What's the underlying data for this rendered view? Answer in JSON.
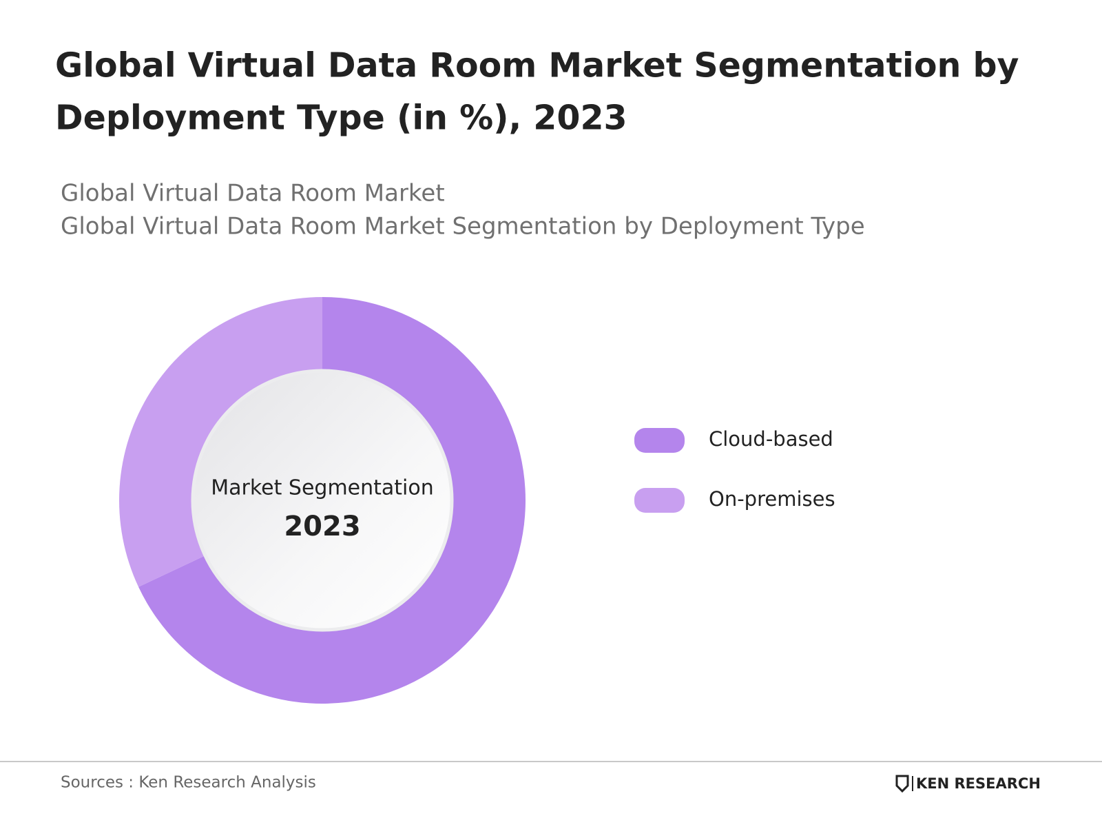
{
  "chart_data": {
    "type": "doughnut",
    "title": [
      "Global Virtual Data Room Market Segmentation by",
      "Deployment Type (in %), 2023"
    ],
    "subtitles": [
      "Global Virtual Data Room Market",
      "Global Virtual Data Room Market Segmentation by Deployment Type"
    ],
    "center_text": [
      "Market Segmentation",
      "2023"
    ],
    "categories": [
      "Cloud-based",
      "On-premises"
    ],
    "values": [
      68,
      32
    ],
    "colors": [
      "#b485ec",
      "#c89ff0"
    ],
    "legend": "right",
    "source": "Sources : Ken Research Analysis",
    "brand": "KEN RESEARCH"
  }
}
